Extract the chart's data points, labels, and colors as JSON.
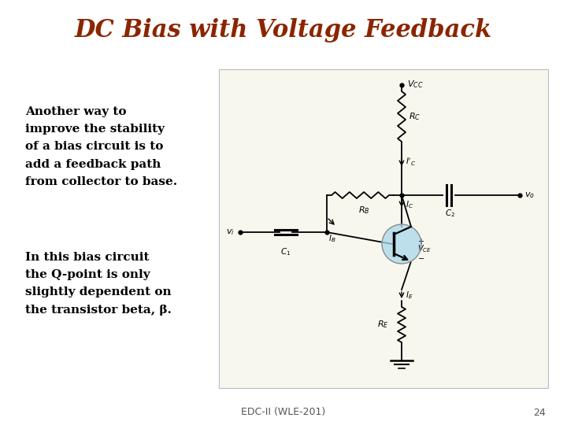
{
  "title": "DC Bias with Voltage Feedback",
  "title_color": "#8B2500",
  "title_fontsize": 22,
  "bg_color": "#FFFFFF",
  "text_block1": "Another way to\nimprove the stability\nof a bias circuit is to\nadd a feedback path\nfrom collector to base.",
  "text_block2": "In this bias circuit\nthe Q-point is only\nslightly dependent on\nthe transistor beta, β.",
  "text_color": "#000000",
  "text_fontsize": 11,
  "footer_text": "EDC-II (WLE-201)",
  "footer_page": "24",
  "footer_fontsize": 9,
  "circuit_box_facecolor": "#F7F7EE",
  "circuit_box_edgecolor": "#BBBBBB"
}
